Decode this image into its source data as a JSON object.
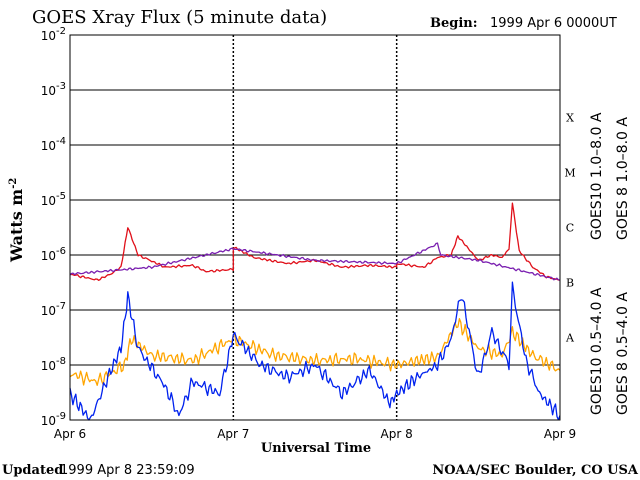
{
  "header": {
    "title": "GOES Xray Flux (5 minute data)",
    "begin_label": "Begin:",
    "begin_value": "1999 Apr 6 0000UT"
  },
  "footer": {
    "updated_label": "Updated",
    "updated_value": "1999 Apr  8 23:59:09",
    "credit": "NOAA/SEC Boulder, CO USA"
  },
  "colors": {
    "goes8_long": "#e0101a",
    "goes10_long": "#7a1fb0",
    "goes10_short": "#ffa500",
    "goes8_short": "#0022ee"
  },
  "chart_data": {
    "type": "line",
    "title": "GOES Xray Flux (5 minute data)",
    "xlabel": "Universal Time",
    "ylabel": "Watts m",
    "ylabel_sup": "-2",
    "y_scale": "log",
    "ylim": [
      1e-09,
      0.01
    ],
    "xlim": [
      "1999-04-06",
      "1999-04-09"
    ],
    "x_ticks": [
      "Apr 6",
      "Apr 7",
      "Apr 8",
      "Apr 9"
    ],
    "y_ticks": [
      {
        "base": "10",
        "exp": "-9"
      },
      {
        "base": "10",
        "exp": "-8"
      },
      {
        "base": "10",
        "exp": "-7"
      },
      {
        "base": "10",
        "exp": "-6"
      },
      {
        "base": "10",
        "exp": "-5"
      },
      {
        "base": "10",
        "exp": "-4"
      },
      {
        "base": "10",
        "exp": "-3"
      },
      {
        "base": "10",
        "exp": "-2"
      }
    ],
    "flare_classes": [
      "A",
      "B",
      "C",
      "M",
      "X"
    ],
    "grid": true,
    "series": [
      {
        "name": "GOES 8 1.0–8.0 A",
        "color": "#e0101a",
        "x": [
          "1999-04-06 00:00",
          "1999-04-06 04:00",
          "1999-04-06 06:00",
          "1999-04-06 07:30",
          "1999-04-06 08:30",
          "1999-04-06 10:00",
          "1999-04-06 14:00",
          "1999-04-06 18:00",
          "1999-04-06 20:00",
          "1999-04-06 24:00",
          "1999-04-07 00:00",
          "1999-04-07 03:00",
          "1999-04-07 08:00",
          "1999-04-07 12:00",
          "1999-04-07 16:00",
          "1999-04-07 20:00",
          "1999-04-07 24:00",
          "1999-04-08 00:00",
          "1999-04-08 04:00",
          "1999-04-08 06:00",
          "1999-04-08 08:00",
          "1999-04-08 09:00",
          "1999-04-08 12:00",
          "1999-04-08 14:00",
          "1999-04-08 15:30",
          "1999-04-08 16:30",
          "1999-04-08 17:00",
          "1999-04-08 18:00",
          "1999-04-08 20:00",
          "1999-04-08 22:00",
          "1999-04-08 23:59"
        ],
        "y": [
          4.5e-07,
          3.5e-07,
          4.5e-07,
          6e-07,
          3.2e-06,
          1e-06,
          6e-07,
          6.5e-07,
          5e-07,
          5.5e-07,
          1.4e-06,
          9e-07,
          7e-07,
          8e-07,
          6e-07,
          6.5e-07,
          6e-07,
          7e-07,
          6e-07,
          9e-07,
          1e-06,
          2.2e-06,
          8e-07,
          1e-06,
          9e-07,
          1.3e-06,
          9e-06,
          1.2e-06,
          6e-07,
          4e-07,
          3.5e-07
        ]
      },
      {
        "name": "GOES10 1.0–8.0 A",
        "color": "#7a1fb0",
        "x": [
          "1999-04-06 00:00",
          "1999-04-06 12:00",
          "1999-04-07 00:00",
          "1999-04-07 12:00",
          "1999-04-08 00:00",
          "1999-04-08 06:00",
          "1999-04-08 06:30",
          "1999-04-08 12:00",
          "1999-04-08 23:59"
        ],
        "y": [
          4.5e-07,
          6e-07,
          1.3e-06,
          8e-07,
          7e-07,
          1.6e-06,
          1e-06,
          8e-07,
          3.5e-07
        ]
      },
      {
        "name": "GOES10 0.5–4.0 A",
        "color": "#ffa500",
        "x": [
          "1999-04-06 00:00",
          "1999-04-06 04:00",
          "1999-04-06 08:00",
          "1999-04-06 09:00",
          "1999-04-06 12:00",
          "1999-04-06 18:00",
          "1999-04-07 00:00",
          "1999-04-07 06:00",
          "1999-04-07 12:00",
          "1999-04-07 18:00",
          "1999-04-08 00:00",
          "1999-04-08 03:00",
          "1999-04-08 06:00",
          "1999-04-08 09:00",
          "1999-04-08 12:00",
          "1999-04-08 15:30",
          "1999-04-08 17:00",
          "1999-04-08 20:00",
          "1999-04-08 23:59"
        ],
        "y": [
          7e-09,
          5e-09,
          1e-08,
          3e-08,
          1.5e-08,
          1.2e-08,
          3e-08,
          1.5e-08,
          1.2e-08,
          1.3e-08,
          1e-08,
          1.2e-08,
          1.4e-08,
          6e-08,
          2e-08,
          1.5e-08,
          4e-08,
          1.5e-08,
          8e-09
        ]
      },
      {
        "name": "GOES 8 0.5–4.0 A",
        "color": "#0022ee",
        "x": [
          "1999-04-06 00:00",
          "1999-04-06 03:00",
          "1999-04-06 06:00",
          "1999-04-06 07:30",
          "1999-04-06 08:30",
          "1999-04-06 10:00",
          "1999-04-06 14:00",
          "1999-04-06 16:00",
          "1999-04-06 18:00",
          "1999-04-06 22:00",
          "1999-04-07 00:00",
          "1999-04-07 04:00",
          "1999-04-07 08:00",
          "1999-04-07 12:00",
          "1999-04-07 16:00",
          "1999-04-07 20:00",
          "1999-04-07 23:00",
          "1999-04-08 00:00",
          "1999-04-08 03:00",
          "1999-04-08 06:00",
          "1999-04-08 08:00",
          "1999-04-08 09:30",
          "1999-04-08 12:00",
          "1999-04-08 14:00",
          "1999-04-08 16:30",
          "1999-04-08 17:00",
          "1999-04-08 19:00",
          "1999-04-08 21:00",
          "1999-04-08 23:59"
        ],
        "y": [
          3e-09,
          1e-09,
          8e-09,
          2e-08,
          1.8e-07,
          2e-08,
          4e-09,
          1.2e-09,
          5e-09,
          3e-09,
          3.5e-08,
          1e-08,
          6e-09,
          1e-08,
          3e-09,
          8e-09,
          2e-09,
          3e-09,
          6e-09,
          1e-08,
          3e-08,
          2e-07,
          6e-09,
          4e-08,
          1e-08,
          2.5e-07,
          1.2e-08,
          3e-09,
          1.2e-09
        ]
      }
    ]
  }
}
